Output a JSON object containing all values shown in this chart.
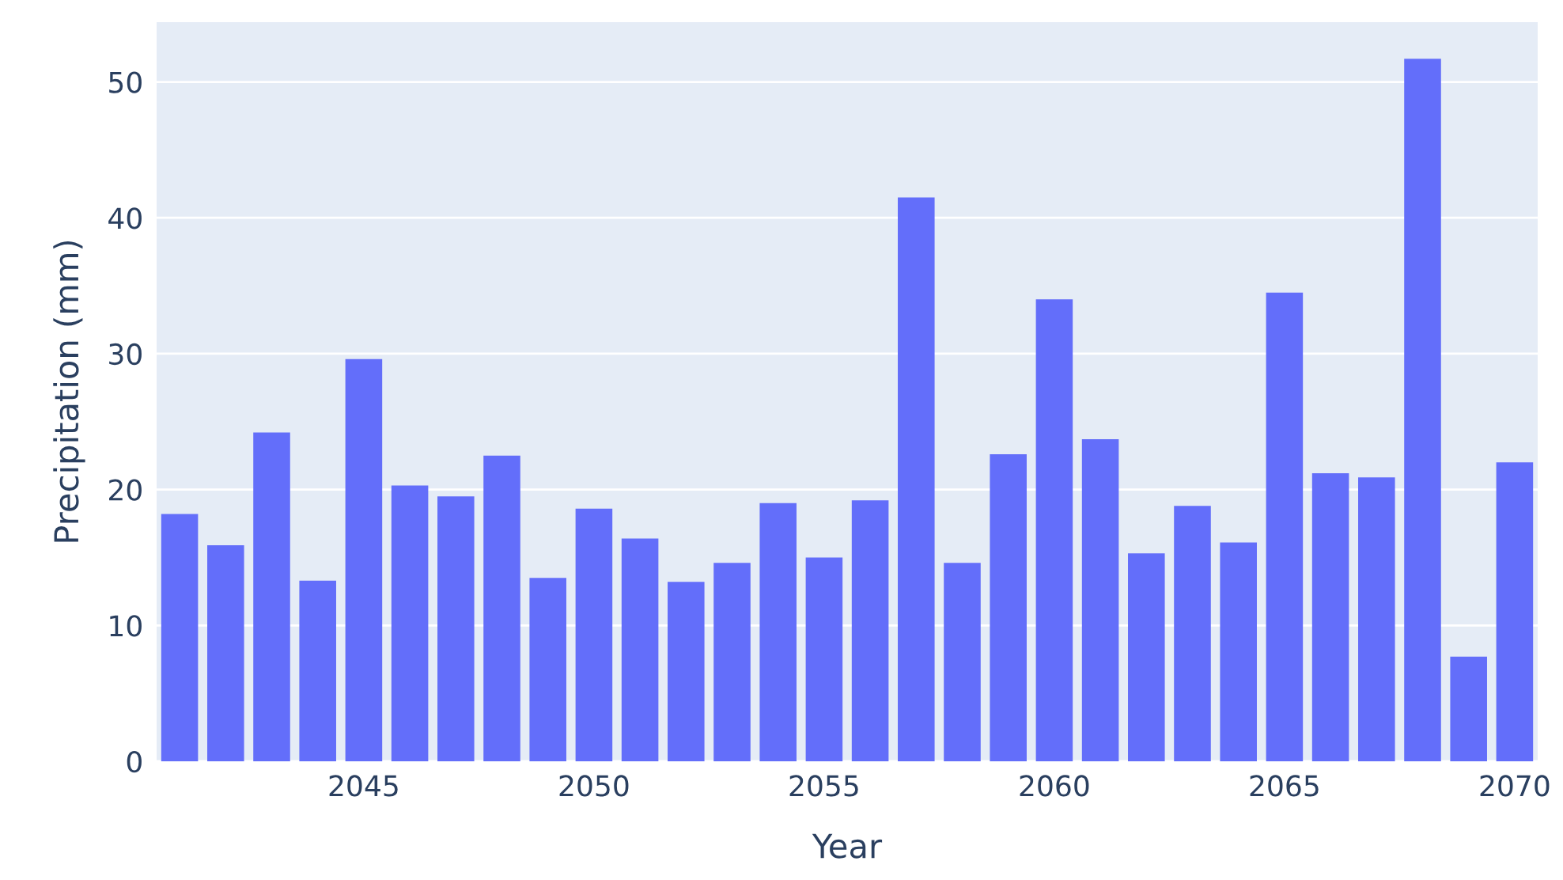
{
  "chart_data": {
    "type": "bar",
    "xlabel": "Year",
    "ylabel": "Precipitation (mm)",
    "x": [
      2041,
      2042,
      2043,
      2044,
      2045,
      2046,
      2047,
      2048,
      2049,
      2050,
      2051,
      2052,
      2053,
      2054,
      2055,
      2056,
      2057,
      2058,
      2059,
      2060,
      2061,
      2062,
      2063,
      2064,
      2065,
      2066,
      2067,
      2068,
      2069,
      2070
    ],
    "values": [
      18.2,
      15.9,
      24.2,
      13.3,
      29.6,
      20.3,
      19.5,
      22.5,
      13.5,
      18.6,
      16.4,
      13.2,
      14.6,
      19.0,
      15.0,
      19.2,
      41.5,
      14.6,
      22.6,
      34.0,
      23.7,
      15.3,
      18.8,
      16.1,
      34.5,
      21.2,
      20.9,
      51.7,
      7.7,
      22.0
    ],
    "color": "#636efa",
    "xlim": [
      2040.5,
      2070.5
    ],
    "xticks": [
      2045,
      2050,
      2055,
      2060,
      2065,
      2070
    ],
    "ylim": [
      0,
      54.4
    ],
    "yticks": [
      0,
      10,
      20,
      30,
      40,
      50
    ],
    "grid": "y"
  }
}
